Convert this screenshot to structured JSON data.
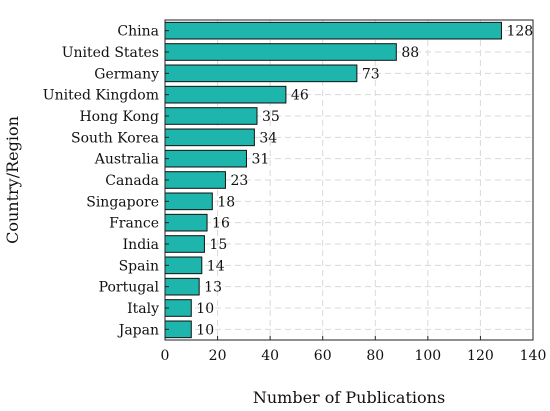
{
  "chart_data": {
    "type": "bar",
    "orientation": "horizontal",
    "categories": [
      "China",
      "United States",
      "Germany",
      "United Kingdom",
      "Hong Kong",
      "South Korea",
      "Australia",
      "Canada",
      "Singapore",
      "France",
      "India",
      "Spain",
      "Portugal",
      "Italy",
      "Japan"
    ],
    "values": [
      128,
      88,
      73,
      46,
      35,
      34,
      31,
      23,
      18,
      16,
      15,
      14,
      13,
      10,
      10
    ],
    "xlabel": "Number of Publications",
    "ylabel": "Country/Region",
    "xlim": [
      0,
      140
    ],
    "xticks": [
      0,
      20,
      40,
      60,
      80,
      100,
      120,
      140
    ],
    "grid": true,
    "bar_color": "#1db5ac",
    "data_labels": true
  }
}
